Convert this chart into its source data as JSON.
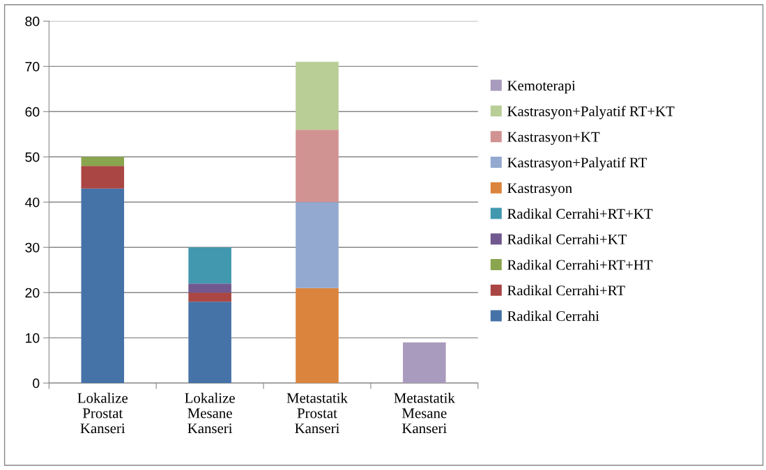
{
  "chart_data": {
    "type": "bar",
    "stacked": true,
    "categories": [
      "Lokalize\nProstat\nKanseri",
      "Lokalize\nMesane\nKanseri",
      "Metastatik\nProstat\nKanseri",
      "Metastatik\nMesane\nKanseri"
    ],
    "series": [
      {
        "name": "Radikal Cerrahi",
        "color": "#4572a7",
        "values": [
          43,
          18,
          null,
          null
        ]
      },
      {
        "name": "Radikal Cerrahi+RT",
        "color": "#aa4643",
        "values": [
          5,
          2,
          null,
          null
        ]
      },
      {
        "name": "Radikal Cerrahi+RT+HT",
        "color": "#89a54e",
        "values": [
          2,
          null,
          null,
          null
        ]
      },
      {
        "name": "Radikal Cerrahi+KT",
        "color": "#71588f",
        "values": [
          null,
          2,
          null,
          null
        ]
      },
      {
        "name": "Radikal Cerrahi+RT+KT",
        "color": "#4198af",
        "values": [
          null,
          8,
          null,
          null
        ]
      },
      {
        "name": "Kastrasyon",
        "color": "#db843d",
        "values": [
          null,
          null,
          21,
          null
        ]
      },
      {
        "name": "Kastrasyon+Palyatif RT",
        "color": "#93a9cf",
        "values": [
          null,
          null,
          19,
          null
        ]
      },
      {
        "name": "Kastrasyon+KT",
        "color": "#d19392",
        "values": [
          null,
          null,
          16,
          null
        ]
      },
      {
        "name": "Kastrasyon+Palyatif RT+KT",
        "color": "#b9cd96",
        "values": [
          null,
          null,
          15,
          null
        ]
      },
      {
        "name": "Kemoterapi",
        "color": "#a99bbd",
        "values": [
          null,
          null,
          null,
          9
        ]
      }
    ],
    "ylim": [
      0,
      80
    ],
    "yticks": [
      0,
      10,
      20,
      30,
      40,
      50,
      60,
      70,
      80
    ],
    "grid": "y",
    "legend": "right"
  }
}
